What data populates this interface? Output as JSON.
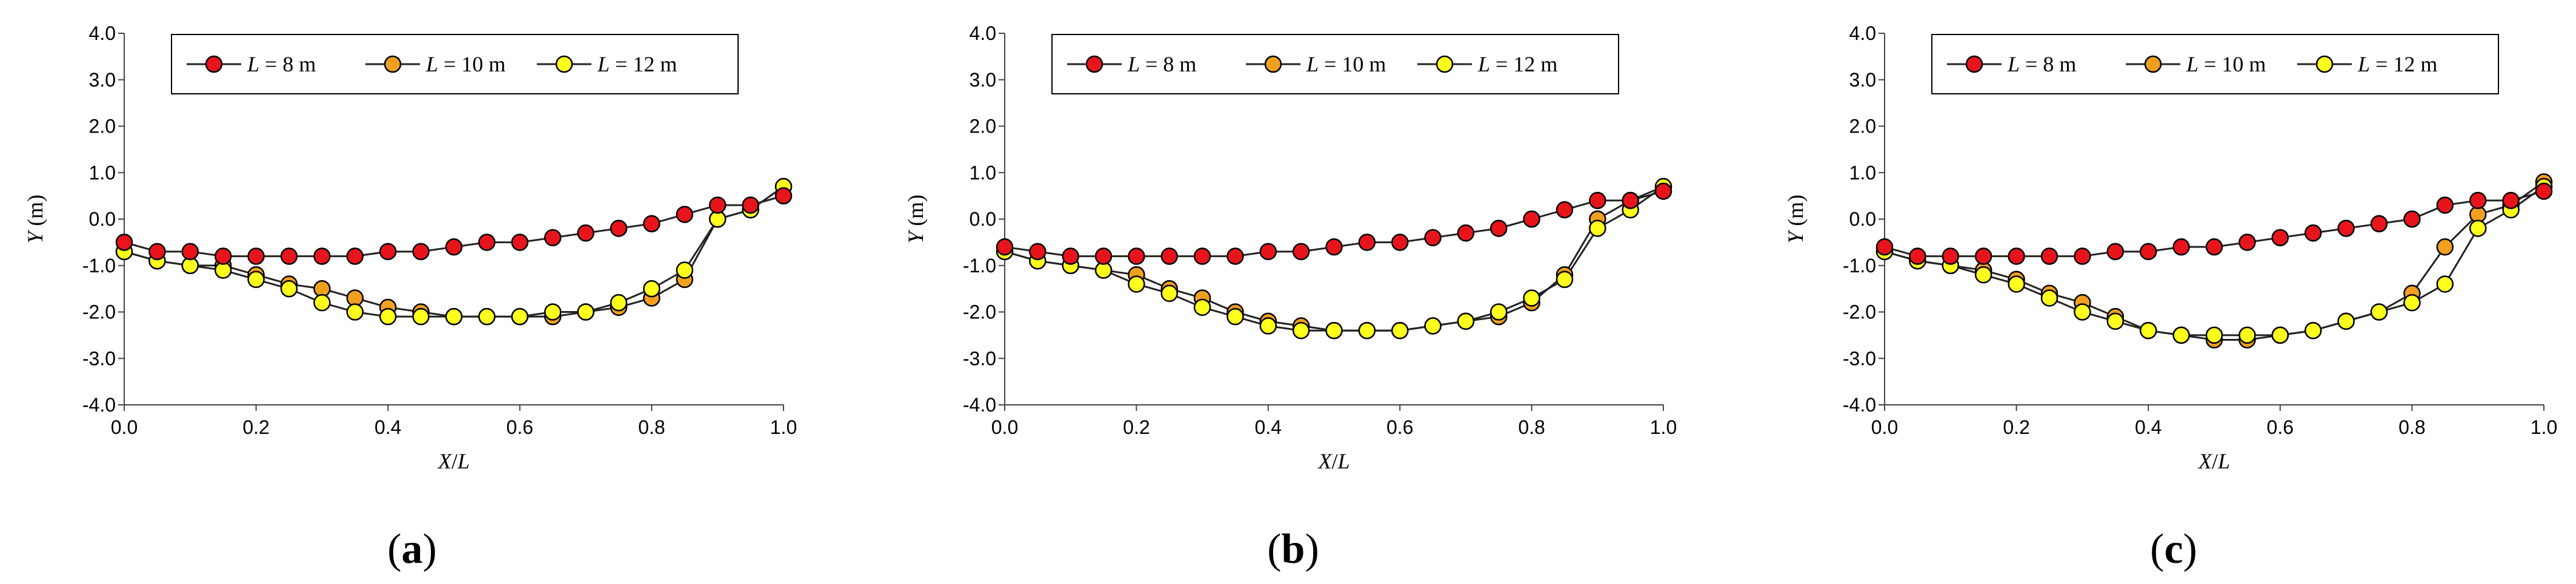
{
  "colors": {
    "series": [
      "#e8141c",
      "#f0a01e",
      "#ffff1e"
    ],
    "marker_stroke": "#000000",
    "line": "#222222"
  },
  "legend_labels": [
    {
      "italic": "L",
      "rest": " = 8 m"
    },
    {
      "italic": "L",
      "rest": " = 10 m"
    },
    {
      "italic": "L",
      "rest": " = 12 m"
    }
  ],
  "chart_data": [
    {
      "type": "line",
      "panel_label": {
        "open": "(",
        "letter": "a",
        "close": ")"
      },
      "xlabel": {
        "italic": "X",
        "rest": "/",
        "italic2": "L"
      },
      "ylabel": {
        "italic": "Y",
        "rest": " (m)"
      },
      "xlim": [
        0,
        1
      ],
      "ylim": [
        -4,
        4
      ],
      "xticks": [
        "0.0",
        "0.2",
        "0.4",
        "0.6",
        "0.8",
        "1.0"
      ],
      "yticks": [
        "-4.0",
        "-3.0",
        "-2.0",
        "-1.0",
        "0.0",
        "1.0",
        "2.0",
        "3.0",
        "4.0"
      ],
      "x": [
        0,
        0.05,
        0.1,
        0.15,
        0.2,
        0.25,
        0.3,
        0.35,
        0.4,
        0.45,
        0.5,
        0.55,
        0.6,
        0.65,
        0.7,
        0.75,
        0.8,
        0.85,
        0.9,
        0.95,
        1.0
      ],
      "series": [
        {
          "name": "L = 8 m",
          "values": [
            -0.5,
            -0.7,
            -0.7,
            -0.8,
            -0.8,
            -0.8,
            -0.8,
            -0.8,
            -0.7,
            -0.7,
            -0.6,
            -0.5,
            -0.5,
            -0.4,
            -0.3,
            -0.2,
            -0.1,
            0.1,
            0.3,
            0.3,
            0.5
          ]
        },
        {
          "name": "L = 10 m",
          "values": [
            -0.7,
            -0.9,
            -1.0,
            -1.0,
            -1.2,
            -1.4,
            -1.5,
            -1.7,
            -1.9,
            -2.0,
            -2.1,
            -2.1,
            -2.1,
            -2.1,
            -2.0,
            -1.9,
            -1.7,
            -1.3,
            0.0,
            0.2,
            0.7
          ]
        },
        {
          "name": "L = 12 m",
          "values": [
            -0.7,
            -0.9,
            -1.0,
            -1.1,
            -1.3,
            -1.5,
            -1.8,
            -2.0,
            -2.1,
            -2.1,
            -2.1,
            -2.1,
            -2.1,
            -2.0,
            -2.0,
            -1.8,
            -1.5,
            -1.1,
            0.0,
            0.2,
            0.7
          ]
        }
      ]
    },
    {
      "type": "line",
      "panel_label": {
        "open": "(",
        "letter": "b",
        "close": ")"
      },
      "xlabel": {
        "italic": "X",
        "rest": "/",
        "italic2": "L"
      },
      "ylabel": {
        "italic": "Y",
        "rest": " (m)"
      },
      "xlim": [
        0,
        1
      ],
      "ylim": [
        -4,
        4
      ],
      "xticks": [
        "0.0",
        "0.2",
        "0.4",
        "0.6",
        "0.8",
        "1.0"
      ],
      "yticks": [
        "-4.0",
        "-3.0",
        "-2.0",
        "-1.0",
        "0.0",
        "1.0",
        "2.0",
        "3.0",
        "4.0"
      ],
      "x": [
        0,
        0.05,
        0.1,
        0.15,
        0.2,
        0.25,
        0.3,
        0.35,
        0.4,
        0.45,
        0.5,
        0.55,
        0.6,
        0.65,
        0.7,
        0.75,
        0.8,
        0.85,
        0.9,
        0.95,
        1.0
      ],
      "series": [
        {
          "name": "L = 8 m",
          "values": [
            -0.6,
            -0.7,
            -0.8,
            -0.8,
            -0.8,
            -0.8,
            -0.8,
            -0.8,
            -0.7,
            -0.7,
            -0.6,
            -0.5,
            -0.5,
            -0.4,
            -0.3,
            -0.2,
            0.0,
            0.2,
            0.4,
            0.4,
            0.6
          ]
        },
        {
          "name": "L = 10 m",
          "values": [
            -0.7,
            -0.9,
            -1.0,
            -1.1,
            -1.2,
            -1.5,
            -1.7,
            -2.0,
            -2.2,
            -2.3,
            -2.4,
            -2.4,
            -2.4,
            -2.3,
            -2.2,
            -2.1,
            -1.8,
            -1.2,
            0.0,
            0.4,
            0.7
          ]
        },
        {
          "name": "L = 12 m",
          "values": [
            -0.7,
            -0.9,
            -1.0,
            -1.1,
            -1.4,
            -1.6,
            -1.9,
            -2.1,
            -2.3,
            -2.4,
            -2.4,
            -2.4,
            -2.4,
            -2.3,
            -2.2,
            -2.0,
            -1.7,
            -1.3,
            -0.2,
            0.2,
            0.7
          ]
        }
      ]
    },
    {
      "type": "line",
      "panel_label": {
        "open": "(",
        "letter": "c",
        "close": ")"
      },
      "xlabel": {
        "italic": "X",
        "rest": "/",
        "italic2": "L"
      },
      "ylabel": {
        "italic": "Y",
        "rest": " (m)"
      },
      "xlim": [
        0,
        1
      ],
      "ylim": [
        -4,
        4
      ],
      "xticks": [
        "0.0",
        "0.2",
        "0.4",
        "0.6",
        "0.8",
        "1.0"
      ],
      "yticks": [
        "-4.0",
        "-3.0",
        "-2.0",
        "-1.0",
        "0.0",
        "1.0",
        "2.0",
        "3.0",
        "4.0"
      ],
      "x": [
        0,
        0.05,
        0.1,
        0.15,
        0.2,
        0.25,
        0.3,
        0.35,
        0.4,
        0.45,
        0.5,
        0.55,
        0.6,
        0.65,
        0.7,
        0.75,
        0.8,
        0.85,
        0.9,
        0.95,
        1.0
      ],
      "series": [
        {
          "name": "L = 8 m",
          "values": [
            -0.6,
            -0.8,
            -0.8,
            -0.8,
            -0.8,
            -0.8,
            -0.8,
            -0.7,
            -0.7,
            -0.6,
            -0.6,
            -0.5,
            -0.4,
            -0.3,
            -0.2,
            -0.1,
            0.0,
            0.3,
            0.4,
            0.4,
            0.6
          ]
        },
        {
          "name": "L = 10 m",
          "values": [
            -0.7,
            -0.9,
            -1.0,
            -1.1,
            -1.3,
            -1.6,
            -1.8,
            -2.1,
            -2.4,
            -2.5,
            -2.6,
            -2.6,
            -2.5,
            -2.4,
            -2.2,
            -2.0,
            -1.6,
            -0.6,
            0.1,
            0.3,
            0.8
          ]
        },
        {
          "name": "L = 12 m",
          "values": [
            -0.7,
            -0.9,
            -1.0,
            -1.2,
            -1.4,
            -1.7,
            -2.0,
            -2.2,
            -2.4,
            -2.5,
            -2.5,
            -2.5,
            -2.5,
            -2.4,
            -2.2,
            -2.0,
            -1.8,
            -1.4,
            -0.2,
            0.2,
            0.7
          ]
        }
      ]
    }
  ]
}
